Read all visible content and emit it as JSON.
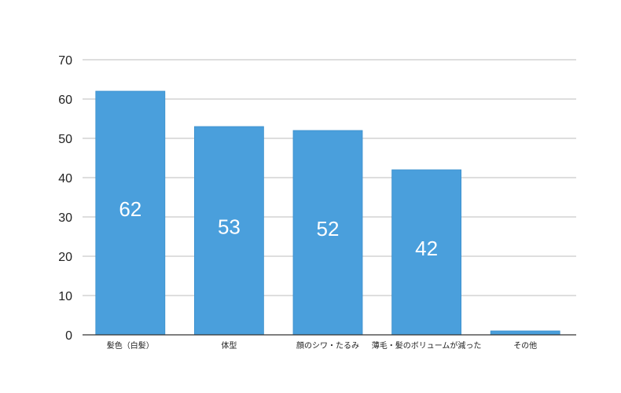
{
  "chart_data": {
    "type": "bar",
    "categories": [
      "髪色（白髪）",
      "体型",
      "顔のシワ・たるみ",
      "薄毛・髪のボリュームが減った",
      "その他"
    ],
    "values": [
      62,
      53,
      52,
      42,
      1
    ],
    "data_labels": [
      "62",
      "53",
      "52",
      "42",
      ""
    ],
    "ylim": [
      0,
      70
    ],
    "yticks": [
      0,
      10,
      20,
      30,
      40,
      50,
      60,
      70
    ],
    "grid": true,
    "legend": "none",
    "title": "",
    "xlabel": "",
    "ylabel": "",
    "colors": {
      "bar": "#4a9fdc",
      "bar_edge": "#3b8fcc",
      "grid": "#bdbdbd",
      "axis": "#333333"
    }
  }
}
